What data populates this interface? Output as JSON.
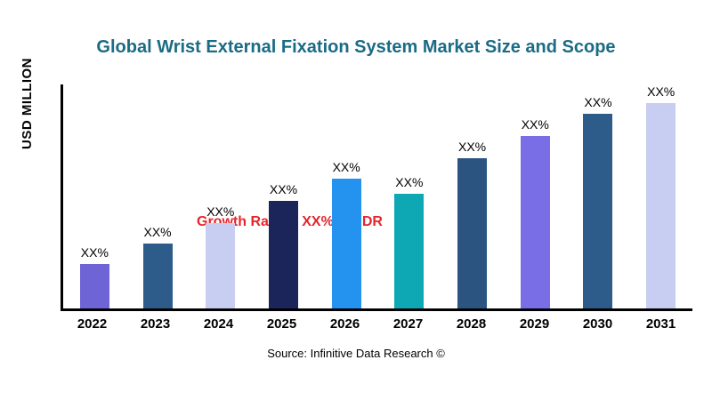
{
  "chart_data": {
    "type": "bar",
    "title": "Global Wrist External Fixation System Market Size and Scope",
    "ylabel": "USD MILLION",
    "xlabel": "",
    "categories": [
      "2022",
      "2023",
      "2024",
      "2025",
      "2026",
      "2027",
      "2028",
      "2029",
      "2030",
      "2031"
    ],
    "values": [
      20,
      29,
      38,
      48,
      58,
      51,
      67,
      77,
      87,
      97
    ],
    "bar_labels": [
      "XX%",
      "XX%",
      "XX%",
      "XX%",
      "XX%",
      "XX%",
      "XX%",
      "XX%",
      "XX%",
      "XX%"
    ],
    "colors": [
      "#6f64d6",
      "#2e5c8a",
      "#c8cdf2",
      "#1b2559",
      "#2492ef",
      "#0ea8b5",
      "#2b5580",
      "#7a6ee6",
      "#2e5c8a",
      "#c8cdf2"
    ],
    "annotation": "Growth Rate at XX% by IDR",
    "source": "Source: Infinitive Data Research ©",
    "ylim": [
      0,
      100
    ],
    "grid": false,
    "legend": "none",
    "title_color": "#1a6b85",
    "annotation_color": "#e6252b"
  }
}
